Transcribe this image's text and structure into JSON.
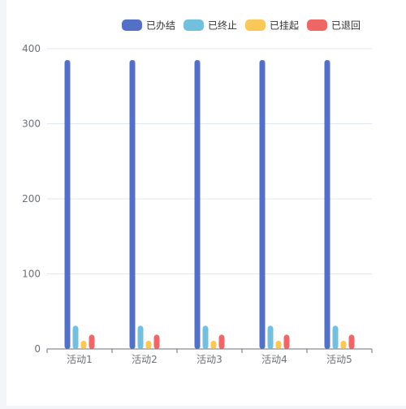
{
  "chart_data": {
    "type": "bar",
    "categories": [
      "活动1",
      "活动2",
      "活动3",
      "活动4",
      "活动5"
    ],
    "series": [
      {
        "name": "已办结",
        "values": [
          385,
          385,
          385,
          385,
          385
        ],
        "color": "#5470c6"
      },
      {
        "name": "已终止",
        "values": [
          31,
          31,
          31,
          31,
          31
        ],
        "color": "#73c0de"
      },
      {
        "name": "已挂起",
        "values": [
          11,
          11,
          11,
          11,
          11
        ],
        "color": "#fac858"
      },
      {
        "name": "已退回",
        "values": [
          19,
          19,
          19,
          19,
          19
        ],
        "color": "#ee6666"
      }
    ],
    "yticks": [
      0,
      100,
      200,
      300,
      400
    ],
    "ylim": [
      0,
      400
    ],
    "grid": true,
    "legend_position": "top-right",
    "colors": {
      "axis": "#6e7079",
      "gridline": "#e0e6f1",
      "page_background": "#f4f5f8",
      "panel_background": "#ffffff"
    }
  }
}
